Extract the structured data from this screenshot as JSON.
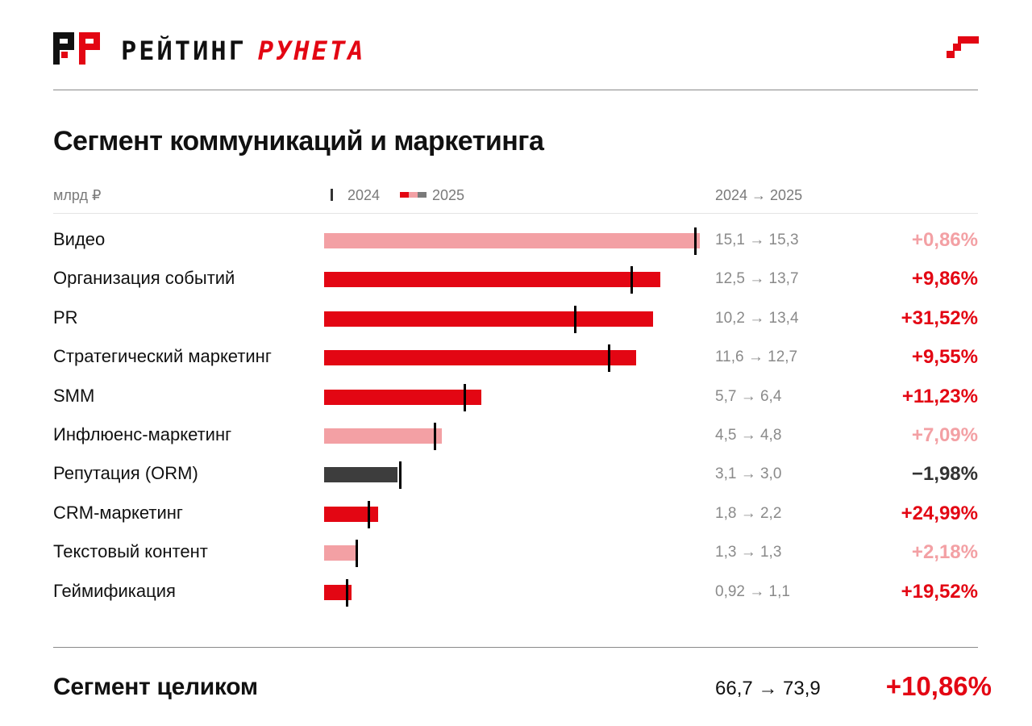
{
  "header": {
    "brand_part1": "РЕЙТИНГ",
    "brand_part2": "РУНЕТА",
    "logo_icon": "rr-logo-icon",
    "corner_icon": "pixel-corner-icon"
  },
  "title": "Сегмент коммуникаций и маркетинга",
  "legend": {
    "unit": "млрд ₽",
    "label_2024": "2024",
    "label_2025": "2025",
    "change_header": "2024 → 2025"
  },
  "colors": {
    "growth_high": "#e30613",
    "growth_low": "#f3a0a4",
    "decline": "#3d3d3d",
    "marker_2024": "#000000"
  },
  "chart_data": {
    "type": "bar",
    "orientation": "horizontal",
    "title": "Сегмент коммуникаций и маркетинга",
    "unit": "млрд ₽",
    "categories": [
      "Видео",
      "Организация событий",
      "PR",
      "Стратегический маркетинг",
      "SMM",
      "Инфлюенс-маркетинг",
      "Репутация (ORM)",
      "CRM-маркетинг",
      "Текстовый контент",
      "Геймификация"
    ],
    "series": [
      {
        "name": "2024",
        "values": [
          15.1,
          12.5,
          10.2,
          11.6,
          5.7,
          4.5,
          3.1,
          1.8,
          1.3,
          0.92
        ]
      },
      {
        "name": "2025",
        "values": [
          15.3,
          13.7,
          13.4,
          12.7,
          6.4,
          4.8,
          3.0,
          2.2,
          1.3,
          1.1
        ]
      }
    ],
    "rows": [
      {
        "label": "Видео",
        "v2024": 15.1,
        "v2025": 15.3,
        "change": "15,1 → 15,3",
        "pct": "+0,86%",
        "tone": "low"
      },
      {
        "label": "Организация событий",
        "v2024": 12.5,
        "v2025": 13.7,
        "change": "12,5 → 13,7",
        "pct": "+9,86%",
        "tone": "high"
      },
      {
        "label": "PR",
        "v2024": 10.2,
        "v2025": 13.4,
        "change": "10,2 → 13,4",
        "pct": "+31,52%",
        "tone": "high"
      },
      {
        "label": "Стратегический маркетинг",
        "v2024": 11.6,
        "v2025": 12.7,
        "change": "11,6 → 12,7",
        "pct": "+9,55%",
        "tone": "high"
      },
      {
        "label": "SMM",
        "v2024": 5.7,
        "v2025": 6.4,
        "change": "5,7 → 6,4",
        "pct": "+11,23%",
        "tone": "high"
      },
      {
        "label": "Инфлюенс-маркетинг",
        "v2024": 4.5,
        "v2025": 4.8,
        "change": "4,5 → 4,8",
        "pct": "+7,09%",
        "tone": "low"
      },
      {
        "label": "Репутация (ORM)",
        "v2024": 3.1,
        "v2025": 3.0,
        "change": "3,1 → 3,0",
        "pct": "−1,98%",
        "tone": "decline"
      },
      {
        "label": "CRM-маркетинг",
        "v2024": 1.8,
        "v2025": 2.2,
        "change": "1,8 → 2,2",
        "pct": "+24,99%",
        "tone": "high"
      },
      {
        "label": "Текстовый контент",
        "v2024": 1.3,
        "v2025": 1.3,
        "change": "1,3 → 1,3",
        "pct": "+2,18%",
        "tone": "low"
      },
      {
        "label": "Геймификация",
        "v2024": 0.92,
        "v2025": 1.1,
        "change": "0,92 → 1,1",
        "pct": "+19,52%",
        "tone": "high"
      }
    ],
    "xlim": [
      0,
      15.3
    ],
    "grid": false
  },
  "total": {
    "label": "Сегмент целиком",
    "change": "66,7 → 73,9",
    "pct": "+10,86%"
  }
}
